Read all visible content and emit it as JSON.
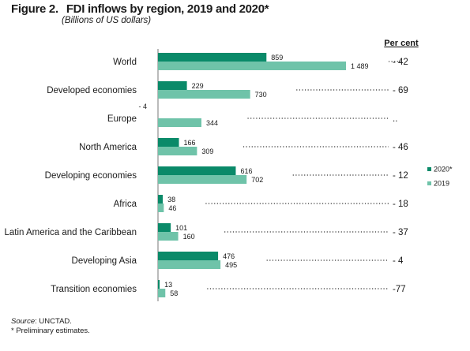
{
  "figure": {
    "label": "Figure 2.",
    "title": "FDI inflows by region, 2019 and 2020*",
    "subtitle": "(Billions of US dollars)"
  },
  "footer": {
    "source_label": "Source",
    "source_text": ": UNCTAD.",
    "note": "* Preliminary estimates."
  },
  "chart_data": {
    "type": "bar",
    "orientation": "horizontal",
    "categories": [
      "World",
      "Developed economies",
      "Europe",
      "North America",
      "Developing economies",
      "Africa",
      "Latin America and the Caribbean",
      "Developing Asia",
      "Transition economies"
    ],
    "series": [
      {
        "name": "2020*",
        "color": "#0a8a69",
        "values": [
          859,
          229,
          -4,
          166,
          616,
          38,
          101,
          476,
          13
        ],
        "labels": [
          "859",
          "229",
          "- 4",
          "166",
          "616",
          "38",
          "101",
          "476",
          "13"
        ]
      },
      {
        "name": "2019",
        "color": "#6fc3a9",
        "values": [
          1489,
          730,
          344,
          309,
          702,
          46,
          160,
          495,
          58
        ],
        "labels": [
          "1 489",
          "730",
          "344",
          "309",
          "702",
          "46",
          "160",
          "495",
          "58"
        ]
      }
    ],
    "percent_change": {
      "header": "Per cent",
      "values": [
        "- 42",
        "- 69",
        "..",
        "- 46",
        "- 12",
        "- 18",
        "- 37",
        "- 4",
        "-77"
      ]
    },
    "legend": {
      "position": "right"
    },
    "grid": false,
    "xlim": [
      0,
      1489
    ]
  }
}
